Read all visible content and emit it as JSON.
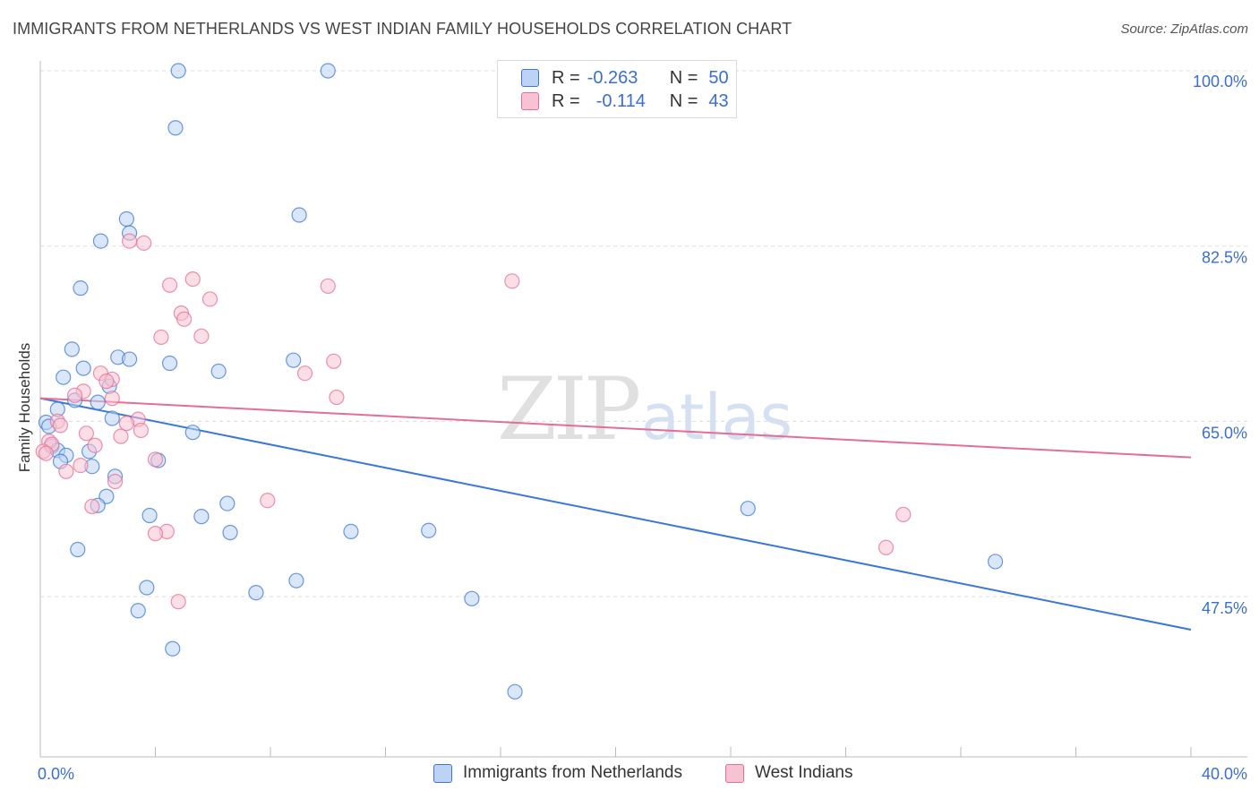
{
  "title": "IMMIGRANTS FROM NETHERLANDS VS WEST INDIAN FAMILY HOUSEHOLDS CORRELATION CHART",
  "source": "Source: ZipAtlas.com",
  "watermark": {
    "zip": "ZIP",
    "atlas": "atlas"
  },
  "colors": {
    "blue": "#3a77d6",
    "blue_fill": "#bcd3f5",
    "pink": "#e66d93",
    "pink_fill": "#f7c3d2",
    "label_blue": "#3a6fd0"
  },
  "legend_top": {
    "rows": [
      {
        "r_label": "R =",
        "r_value": "-0.263",
        "n_label": "N =",
        "n_value": "50"
      },
      {
        "r_label": "R =",
        "r_value": "-0.114",
        "n_label": "N =",
        "n_value": "43"
      }
    ]
  },
  "legend_bottom": {
    "series1": "Immigrants from Netherlands",
    "series2": "West Indians"
  },
  "chart_data": {
    "type": "scatter",
    "title": "IMMIGRANTS FROM NETHERLANDS VS WEST INDIAN FAMILY HOUSEHOLDS CORRELATION CHART",
    "xlabel": "",
    "ylabel": "Family Households",
    "xlim": [
      0,
      40
    ],
    "ylim": [
      31.5,
      100
    ],
    "x_tick_labels": [
      "0.0%",
      "40.0%"
    ],
    "y_ticks": [
      {
        "value": 47.5,
        "label": "47.5%"
      },
      {
        "value": 65.0,
        "label": "65.0%"
      },
      {
        "value": 82.5,
        "label": "82.5%"
      },
      {
        "value": 100.0,
        "label": "100.0%"
      }
    ],
    "grid": "horizontal dashed",
    "series": [
      {
        "name": "Immigrants from Netherlands",
        "color": "#3a77d6",
        "r": -0.263,
        "n": 50,
        "trend": {
          "x": [
            0.0,
            40.0
          ],
          "y": [
            67.3,
            44.2
          ]
        },
        "points": [
          [
            4.8,
            100.0
          ],
          [
            10.0,
            100.0
          ],
          [
            4.7,
            94.3
          ],
          [
            3.0,
            85.2
          ],
          [
            9.0,
            85.6
          ],
          [
            2.1,
            83.0
          ],
          [
            3.1,
            83.8
          ],
          [
            1.4,
            78.3
          ],
          [
            1.1,
            72.2
          ],
          [
            2.7,
            71.4
          ],
          [
            3.1,
            71.2
          ],
          [
            4.5,
            70.8
          ],
          [
            6.2,
            70.0
          ],
          [
            8.8,
            71.1
          ],
          [
            0.8,
            69.4
          ],
          [
            1.5,
            70.3
          ],
          [
            2.4,
            68.5
          ],
          [
            1.2,
            67.1
          ],
          [
            2.0,
            66.9
          ],
          [
            0.6,
            66.2
          ],
          [
            0.2,
            64.9
          ],
          [
            2.5,
            65.3
          ],
          [
            5.3,
            63.9
          ],
          [
            0.3,
            64.5
          ],
          [
            0.4,
            62.5
          ],
          [
            0.6,
            62.1
          ],
          [
            1.7,
            62.0
          ],
          [
            0.9,
            61.6
          ],
          [
            0.7,
            61.0
          ],
          [
            4.1,
            61.1
          ],
          [
            1.8,
            60.5
          ],
          [
            2.6,
            59.5
          ],
          [
            2.3,
            57.5
          ],
          [
            2.0,
            56.6
          ],
          [
            6.5,
            56.8
          ],
          [
            3.8,
            55.6
          ],
          [
            5.6,
            55.5
          ],
          [
            6.6,
            53.9
          ],
          [
            10.8,
            54.0
          ],
          [
            13.5,
            54.1
          ],
          [
            24.6,
            56.3
          ],
          [
            33.2,
            51.0
          ],
          [
            1.3,
            52.2
          ],
          [
            3.7,
            48.4
          ],
          [
            7.5,
            47.9
          ],
          [
            8.9,
            49.1
          ],
          [
            15.0,
            47.3
          ],
          [
            3.4,
            46.1
          ],
          [
            4.6,
            42.3
          ],
          [
            16.5,
            38.0
          ]
        ]
      },
      {
        "name": "West Indians",
        "color": "#e66d93",
        "r": -0.114,
        "n": 43,
        "trend": {
          "x": [
            0.0,
            40.0
          ],
          "y": [
            67.3,
            61.4
          ]
        },
        "points": [
          [
            3.1,
            83.0
          ],
          [
            3.6,
            82.8
          ],
          [
            5.3,
            79.2
          ],
          [
            4.5,
            78.6
          ],
          [
            10.0,
            78.5
          ],
          [
            16.4,
            79.0
          ],
          [
            5.9,
            77.2
          ],
          [
            4.9,
            75.8
          ],
          [
            5.0,
            75.2
          ],
          [
            4.2,
            73.4
          ],
          [
            5.6,
            73.5
          ],
          [
            10.2,
            71.0
          ],
          [
            2.1,
            69.8
          ],
          [
            9.2,
            69.8
          ],
          [
            2.5,
            69.2
          ],
          [
            2.3,
            69.0
          ],
          [
            1.5,
            68.0
          ],
          [
            1.2,
            67.6
          ],
          [
            2.5,
            67.3
          ],
          [
            10.3,
            67.4
          ],
          [
            0.6,
            65.0
          ],
          [
            3.4,
            65.2
          ],
          [
            0.7,
            64.6
          ],
          [
            3.0,
            64.8
          ],
          [
            3.5,
            64.1
          ],
          [
            1.6,
            63.8
          ],
          [
            2.8,
            63.5
          ],
          [
            0.3,
            63.0
          ],
          [
            0.4,
            62.7
          ],
          [
            1.9,
            62.6
          ],
          [
            0.1,
            62.0
          ],
          [
            0.2,
            61.8
          ],
          [
            4.0,
            61.2
          ],
          [
            1.4,
            60.6
          ],
          [
            0.9,
            60.0
          ],
          [
            2.6,
            59.0
          ],
          [
            1.8,
            56.5
          ],
          [
            7.9,
            57.1
          ],
          [
            30.0,
            55.7
          ],
          [
            29.4,
            52.4
          ],
          [
            4.4,
            54.0
          ],
          [
            4.0,
            53.8
          ],
          [
            4.8,
            47.0
          ]
        ]
      }
    ]
  }
}
